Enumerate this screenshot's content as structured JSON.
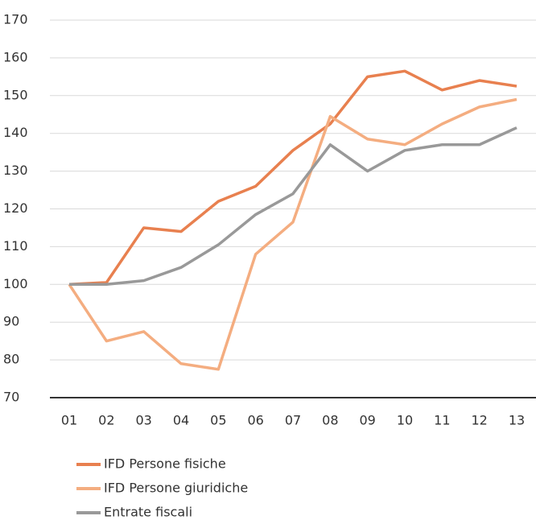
{
  "chart_data": {
    "type": "line",
    "categories": [
      "01",
      "02",
      "03",
      "04",
      "05",
      "06",
      "07",
      "08",
      "09",
      "10",
      "11",
      "12",
      "13"
    ],
    "series": [
      {
        "name": "IFD Persone fisiche",
        "color": "#e8804f",
        "values": [
          100,
          100.5,
          115,
          114,
          122,
          126,
          135.5,
          142.5,
          155,
          156.5,
          151.5,
          154,
          152.5
        ]
      },
      {
        "name": "IFD Persone giuridiche",
        "color": "#f4ad80",
        "values": [
          100,
          85,
          87.5,
          79,
          77.5,
          108,
          116.5,
          144.5,
          138.5,
          137,
          142.5,
          147,
          149
        ]
      },
      {
        "name": "Entrate fiscali",
        "color": "#999999",
        "values": [
          100,
          100,
          101,
          104.5,
          110.5,
          118.5,
          124,
          137,
          130,
          135.5,
          137,
          137,
          141.5
        ]
      }
    ],
    "ylim": [
      70,
      170
    ],
    "yticks": [
      70,
      80,
      90,
      100,
      110,
      120,
      130,
      140,
      150,
      160,
      170
    ],
    "grid": true,
    "legend": "bottom-left"
  }
}
